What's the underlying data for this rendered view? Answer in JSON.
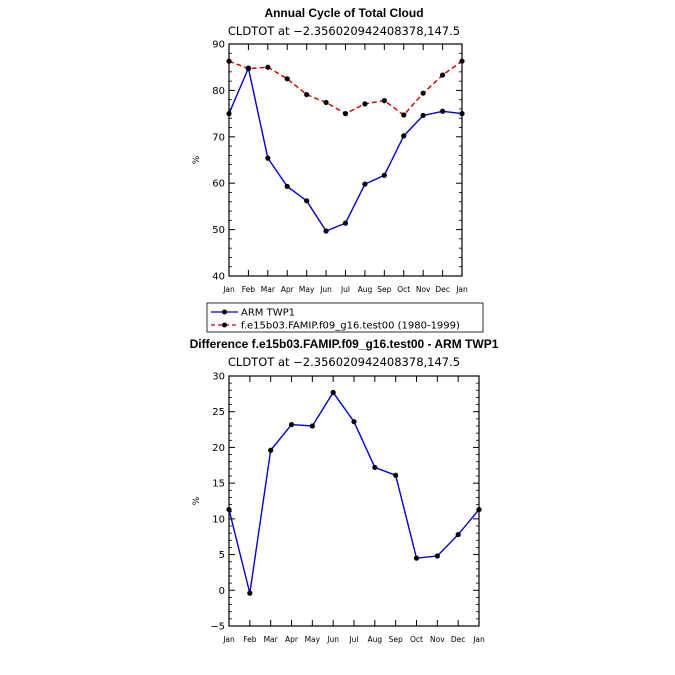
{
  "chart_data": [
    {
      "type": "line",
      "title": "Annual Cycle of Total Cloud",
      "subtitle": "CLDTOT at −2.356020942408378,147.5",
      "xlabel": "",
      "ylabel": "%",
      "categories": [
        "Jan",
        "Feb",
        "Mar",
        "Apr",
        "May",
        "Jun",
        "Jul",
        "Aug",
        "Sep",
        "Oct",
        "Nov",
        "Dec",
        "Jan"
      ],
      "yticks": [
        40,
        50,
        60,
        70,
        80,
        90
      ],
      "ylim": [
        40,
        90
      ],
      "series": [
        {
          "name": "ARM TWP1",
          "color": "#0000cc",
          "dash": "solid",
          "values": [
            75.0,
            84.8,
            65.4,
            59.3,
            56.2,
            49.7,
            51.4,
            59.8,
            61.7,
            70.2,
            74.6,
            75.5,
            75.0
          ]
        },
        {
          "name": "f.e15b03.FAMIP.f09_g16.test00 (1980-1999)",
          "color": "#cc0000",
          "dash": "dashed",
          "values": [
            86.3,
            84.7,
            85.0,
            82.5,
            79.1,
            77.4,
            75.0,
            77.1,
            77.8,
            74.7,
            79.4,
            83.3,
            86.3
          ]
        }
      ],
      "legend": "below"
    },
    {
      "type": "line",
      "title": "Difference f.e15b03.FAMIP.f09_g16.test00 - ARM TWP1",
      "subtitle": "CLDTOT at −2.356020942408378,147.5",
      "xlabel": "",
      "ylabel": "%",
      "categories": [
        "Jan",
        "Feb",
        "Mar",
        "Apr",
        "May",
        "Jun",
        "Jul",
        "Aug",
        "Sep",
        "Oct",
        "Nov",
        "Dec",
        "Jan"
      ],
      "yticks": [
        -5,
        0,
        5,
        10,
        15,
        20,
        25,
        30
      ],
      "ytick_labels": [
        "−5",
        "0",
        "5",
        "10",
        "15",
        "20",
        "25",
        "30"
      ],
      "ylim": [
        -5,
        30
      ],
      "series": [
        {
          "name": "Difference",
          "color": "#0000cc",
          "dash": "solid",
          "values": [
            11.3,
            -0.4,
            19.6,
            23.2,
            23.0,
            27.7,
            23.6,
            17.2,
            16.1,
            4.5,
            4.8,
            7.8,
            11.3
          ]
        }
      ]
    }
  ]
}
